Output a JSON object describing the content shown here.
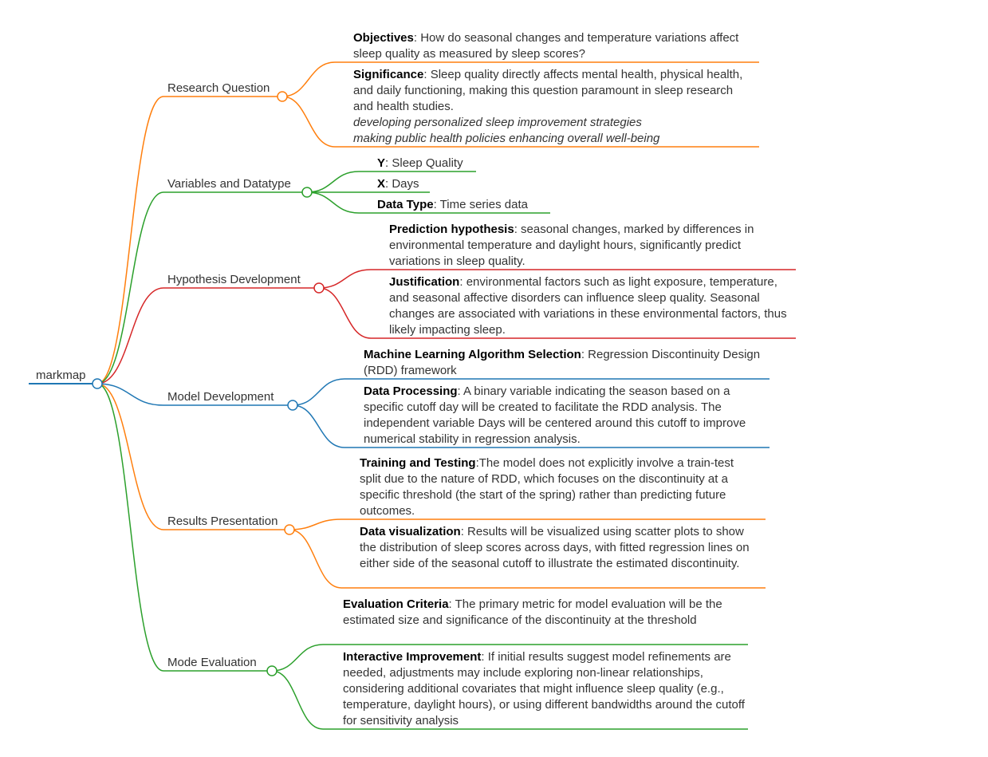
{
  "root": {
    "label": "markmap",
    "color": "#1f77b4"
  },
  "branches": [
    {
      "label": "Research Question",
      "color": "#ff7f0e",
      "children": [
        {
          "title": "Objectives",
          "text": ": How do seasonal changes and temperature variations affect sleep quality as measured by sleep scores?"
        },
        {
          "title": "Significance",
          "text": ": Sleep quality directly affects mental health, physical health, and daily functioning, making this question paramount in sleep research and health studies.",
          "italics": [
            "developing personalized sleep improvement strategies",
            "making public health policies enhancing overall well-being"
          ]
        }
      ]
    },
    {
      "label": "Variables and Datatype",
      "color": "#2ca02c",
      "children": [
        {
          "title": "Y",
          "text": ": Sleep Quality"
        },
        {
          "title": "X",
          "text": ": Days"
        },
        {
          "title": "Data Type",
          "text": ": Time series data"
        }
      ]
    },
    {
      "label": "Hypothesis Development",
      "color": "#d62728",
      "children": [
        {
          "title": "Prediction hypothesis",
          "text": ": seasonal changes, marked by differences in environmental temperature and daylight hours, significantly predict variations in sleep quality."
        },
        {
          "title": "Justification",
          "text": ": environmental factors such as light exposure, temperature, and seasonal affective disorders can influence sleep quality. Seasonal changes are associated with variations in these environmental factors, thus likely impacting sleep."
        }
      ]
    },
    {
      "label": "Model Development",
      "color": "#1f77b4",
      "children": [
        {
          "title": "Machine Learning Algorithm Selection",
          "text": ": Regression Discontinuity Design (RDD) framework"
        },
        {
          "title": "Data Processing",
          "text": ": A binary variable indicating the season based on a specific cutoff day will be created to facilitate the RDD analysis. The independent variable Days will be centered around this cutoff to improve numerical stability in regression analysis."
        }
      ]
    },
    {
      "label": "Results Presentation",
      "color": "#ff7f0e",
      "children": [
        {
          "title": "Training and Testing",
          "text": ":The model does not explicitly involve a train-test split due to the nature of RDD, which focuses on the discontinuity at a specific threshold (the start of the spring) rather than predicting future outcomes."
        },
        {
          "title": "Data visualization",
          "text": ": Results will be visualized using scatter plots to show the distribution of sleep scores across days, with fitted regression lines on either side of the seasonal cutoff to illustrate the estimated discontinuity."
        }
      ]
    },
    {
      "label": "Mode Evaluation",
      "color": "#2ca02c",
      "children": [
        {
          "title": "Evaluation Criteria",
          "text": ": The primary metric for model evaluation will be the estimated size and significance of the discontinuity at the threshold"
        },
        {
          "title": "Interactive Improvement",
          "text": ": If initial results suggest model refinements are needed, adjustments may include exploring non-linear relationships, considering additional covariates that might influence sleep quality (e.g., temperature, daylight hours), or using different bandwidths around the cutoff for sensitivity analysis"
        }
      ]
    }
  ]
}
